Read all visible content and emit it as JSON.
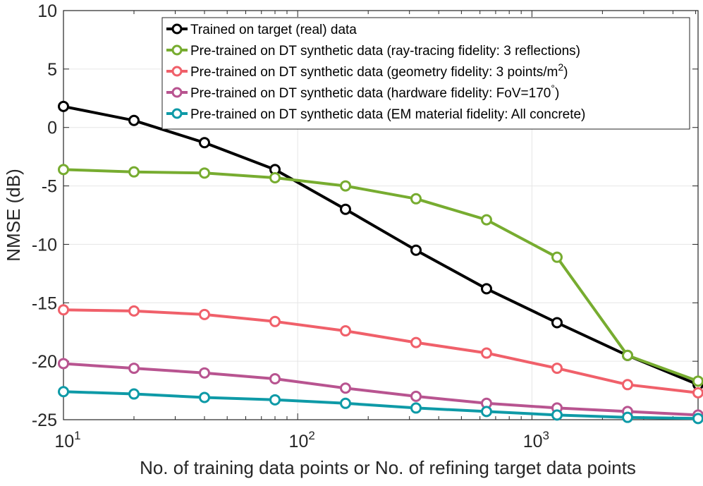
{
  "chart_data": {
    "type": "line",
    "xscale": "log",
    "xlabel": "No. of training data points or No. of refining target data points",
    "ylabel": "NMSE (dB)",
    "xlim": [
      10,
      5120
    ],
    "ylim": [
      -25,
      10
    ],
    "grid": true,
    "legend_position": "top-right",
    "x_ticks": [
      10,
      100,
      1000
    ],
    "x_tick_labels": [
      {
        "base": "10",
        "exp": "1"
      },
      {
        "base": "10",
        "exp": "2"
      },
      {
        "base": "10",
        "exp": "3"
      }
    ],
    "y_ticks": [
      10,
      5,
      0,
      -5,
      -10,
      -15,
      -20,
      -25
    ],
    "y_tick_labels": [
      "10",
      "5",
      "0",
      "-5",
      "-10",
      "-15",
      "-20",
      "-25"
    ],
    "x": [
      10,
      20,
      40,
      80,
      160,
      320,
      640,
      1280,
      2560,
      5120
    ],
    "series": [
      {
        "name": "Trained on target (real) data",
        "legend_parts": [
          "Trained on target (real) data"
        ],
        "color": "#000000",
        "values": [
          1.8,
          0.6,
          -1.3,
          -3.6,
          -7.0,
          -10.5,
          -13.8,
          -16.7,
          -19.5,
          -22.0
        ]
      },
      {
        "name": "Pre-trained on DT synthetic data (ray-tracing fidelity: 3 reflections)",
        "legend_parts": [
          "Pre-trained on DT synthetic data (ray-tracing fidelity: 3 reflections)"
        ],
        "color": "#77AC30",
        "values": [
          -3.6,
          -3.8,
          -3.9,
          -4.3,
          -5.0,
          -6.1,
          -7.9,
          -11.1,
          -19.5,
          -21.7
        ]
      },
      {
        "name": "Pre-trained on DT synthetic data (geometry fidelity: 3 points/m2)",
        "legend_parts": [
          "Pre-trained on DT synthetic data (geometry fidelity: 3 points/m",
          "2",
          ")"
        ],
        "color": "#F0606A",
        "values": [
          -15.6,
          -15.7,
          -16.0,
          -16.6,
          -17.4,
          -18.4,
          -19.3,
          -20.6,
          -22.0,
          -22.7
        ]
      },
      {
        "name": "Pre-trained on DT synthetic data (hardware fidelity: FoV=170°)",
        "legend_parts": [
          "Pre-trained on DT synthetic data (hardware fidelity: FoV=170",
          "°",
          ")"
        ],
        "color": "#B85490",
        "values": [
          -20.2,
          -20.6,
          -21.0,
          -21.5,
          -22.3,
          -23.0,
          -23.6,
          -24.0,
          -24.3,
          -24.6
        ]
      },
      {
        "name": "Pre-trained on DT synthetic data (EM material fidelity: All concrete)",
        "legend_parts": [
          "Pre-trained on DT synthetic data (EM material fidelity: All concrete)"
        ],
        "color": "#0E9AA7",
        "values": [
          -22.6,
          -22.8,
          -23.1,
          -23.3,
          -23.6,
          -24.0,
          -24.3,
          -24.6,
          -24.8,
          -24.9
        ]
      }
    ]
  }
}
